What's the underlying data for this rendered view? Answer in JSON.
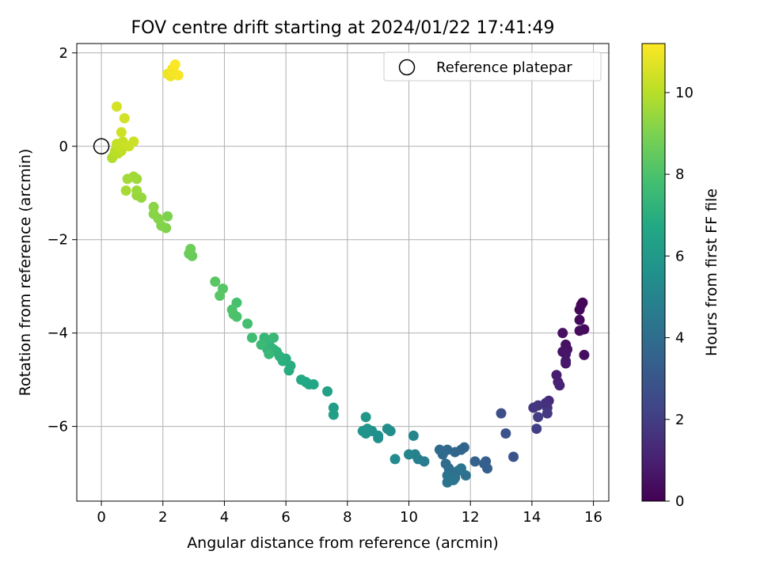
{
  "chart_data": {
    "type": "scatter",
    "title": "FOV centre drift starting at 2024/01/22 17:41:49",
    "xlabel": "Angular distance from reference (arcmin)",
    "ylabel": "Rotation from reference (arcmin)",
    "xlim": [
      -0.8,
      16.5
    ],
    "ylim": [
      -7.6,
      2.2
    ],
    "xticks": [
      0,
      2,
      4,
      6,
      8,
      10,
      12,
      14,
      16
    ],
    "yticks": [
      -6,
      -4,
      -2,
      0,
      2
    ],
    "grid": true,
    "legend": {
      "placement": "top-right",
      "entries": [
        "Reference platepar"
      ]
    },
    "reference_point": {
      "x": 0,
      "y": 0
    },
    "colorbar": {
      "label": "Hours from first FF file",
      "min": 0,
      "max": 11.2,
      "ticks": [
        0,
        2,
        4,
        6,
        8,
        10
      ],
      "colormap": "viridis"
    },
    "points": [
      {
        "x": 15.65,
        "y": -3.35,
        "c": 0.1
      },
      {
        "x": 15.6,
        "y": -3.4,
        "c": 0.15
      },
      {
        "x": 15.55,
        "y": -3.5,
        "c": 0.2
      },
      {
        "x": 15.55,
        "y": -3.72,
        "c": 0.25
      },
      {
        "x": 15.7,
        "y": -3.92,
        "c": 0.3
      },
      {
        "x": 15.55,
        "y": -3.95,
        "c": 0.35
      },
      {
        "x": 15.7,
        "y": -4.47,
        "c": 0.4
      },
      {
        "x": 15.0,
        "y": -4.0,
        "c": 0.45
      },
      {
        "x": 15.1,
        "y": -4.25,
        "c": 0.5
      },
      {
        "x": 15.15,
        "y": -4.35,
        "c": 0.55
      },
      {
        "x": 15.0,
        "y": -4.4,
        "c": 0.6
      },
      {
        "x": 15.1,
        "y": -4.45,
        "c": 0.65
      },
      {
        "x": 15.1,
        "y": -4.6,
        "c": 0.7
      },
      {
        "x": 15.1,
        "y": -4.65,
        "c": 0.75
      },
      {
        "x": 14.8,
        "y": -4.9,
        "c": 0.9
      },
      {
        "x": 14.85,
        "y": -5.05,
        "c": 1.0
      },
      {
        "x": 14.9,
        "y": -5.12,
        "c": 1.1
      },
      {
        "x": 14.55,
        "y": -5.45,
        "c": 1.4
      },
      {
        "x": 14.45,
        "y": -5.5,
        "c": 1.5
      },
      {
        "x": 14.5,
        "y": -5.6,
        "c": 1.6
      },
      {
        "x": 14.2,
        "y": -5.55,
        "c": 1.7
      },
      {
        "x": 14.05,
        "y": -5.6,
        "c": 1.8
      },
      {
        "x": 14.5,
        "y": -5.72,
        "c": 1.9
      },
      {
        "x": 14.2,
        "y": -5.8,
        "c": 2.0
      },
      {
        "x": 14.15,
        "y": -6.05,
        "c": 2.1
      },
      {
        "x": 13.0,
        "y": -5.72,
        "c": 2.7
      },
      {
        "x": 13.15,
        "y": -6.15,
        "c": 2.8
      },
      {
        "x": 13.4,
        "y": -6.65,
        "c": 2.9
      },
      {
        "x": 12.5,
        "y": -6.75,
        "c": 3.3
      },
      {
        "x": 12.55,
        "y": -6.9,
        "c": 3.35
      },
      {
        "x": 12.45,
        "y": -6.8,
        "c": 3.4
      },
      {
        "x": 12.15,
        "y": -6.75,
        "c": 3.5
      },
      {
        "x": 11.8,
        "y": -6.45,
        "c": 3.6
      },
      {
        "x": 11.7,
        "y": -6.5,
        "c": 3.65
      },
      {
        "x": 11.5,
        "y": -6.55,
        "c": 3.7
      },
      {
        "x": 11.25,
        "y": -6.5,
        "c": 3.8
      },
      {
        "x": 11.1,
        "y": -6.6,
        "c": 3.85
      },
      {
        "x": 11.0,
        "y": -6.5,
        "c": 3.9
      },
      {
        "x": 11.2,
        "y": -6.8,
        "c": 3.95
      },
      {
        "x": 11.3,
        "y": -6.9,
        "c": 4.0
      },
      {
        "x": 11.4,
        "y": -7.0,
        "c": 4.05
      },
      {
        "x": 11.6,
        "y": -6.95,
        "c": 4.1
      },
      {
        "x": 11.85,
        "y": -7.05,
        "c": 4.15
      },
      {
        "x": 11.5,
        "y": -7.1,
        "c": 4.2
      },
      {
        "x": 11.25,
        "y": -7.05,
        "c": 4.25
      },
      {
        "x": 11.25,
        "y": -7.2,
        "c": 4.3
      },
      {
        "x": 11.45,
        "y": -7.15,
        "c": 4.35
      },
      {
        "x": 11.7,
        "y": -6.9,
        "c": 4.4
      },
      {
        "x": 10.5,
        "y": -6.75,
        "c": 4.7
      },
      {
        "x": 10.3,
        "y": -6.7,
        "c": 4.8
      },
      {
        "x": 10.2,
        "y": -6.6,
        "c": 4.9
      },
      {
        "x": 10.0,
        "y": -6.6,
        "c": 5.0
      },
      {
        "x": 10.15,
        "y": -6.2,
        "c": 5.1
      },
      {
        "x": 9.55,
        "y": -6.7,
        "c": 5.3
      },
      {
        "x": 9.4,
        "y": -6.1,
        "c": 5.4
      },
      {
        "x": 9.3,
        "y": -6.05,
        "c": 5.45
      },
      {
        "x": 9.0,
        "y": -6.25,
        "c": 5.5
      },
      {
        "x": 9.0,
        "y": -6.2,
        "c": 5.55
      },
      {
        "x": 8.8,
        "y": -6.1,
        "c": 5.6
      },
      {
        "x": 8.6,
        "y": -6.15,
        "c": 5.7
      },
      {
        "x": 8.65,
        "y": -6.05,
        "c": 5.75
      },
      {
        "x": 8.5,
        "y": -6.1,
        "c": 5.8
      },
      {
        "x": 8.6,
        "y": -5.8,
        "c": 5.9
      },
      {
        "x": 7.55,
        "y": -5.6,
        "c": 6.2
      },
      {
        "x": 7.55,
        "y": -5.75,
        "c": 6.3
      },
      {
        "x": 7.35,
        "y": -5.25,
        "c": 6.4
      },
      {
        "x": 6.9,
        "y": -5.1,
        "c": 6.6
      },
      {
        "x": 6.75,
        "y": -5.1,
        "c": 6.65
      },
      {
        "x": 6.65,
        "y": -5.05,
        "c": 6.7
      },
      {
        "x": 6.5,
        "y": -5.0,
        "c": 6.75
      },
      {
        "x": 6.1,
        "y": -4.8,
        "c": 6.9
      },
      {
        "x": 6.15,
        "y": -4.7,
        "c": 6.95
      },
      {
        "x": 6.0,
        "y": -4.55,
        "c": 7.0
      },
      {
        "x": 5.9,
        "y": -4.6,
        "c": 7.05
      },
      {
        "x": 5.8,
        "y": -4.5,
        "c": 7.1
      },
      {
        "x": 5.7,
        "y": -4.4,
        "c": 7.15
      },
      {
        "x": 5.6,
        "y": -4.35,
        "c": 7.2
      },
      {
        "x": 5.5,
        "y": -4.3,
        "c": 7.25
      },
      {
        "x": 5.4,
        "y": -4.35,
        "c": 7.3
      },
      {
        "x": 5.35,
        "y": -4.2,
        "c": 7.35
      },
      {
        "x": 5.3,
        "y": -4.1,
        "c": 7.4
      },
      {
        "x": 5.6,
        "y": -4.1,
        "c": 7.45
      },
      {
        "x": 5.45,
        "y": -4.45,
        "c": 7.5
      },
      {
        "x": 5.2,
        "y": -4.25,
        "c": 7.55
      },
      {
        "x": 4.9,
        "y": -4.1,
        "c": 7.7
      },
      {
        "x": 4.75,
        "y": -3.8,
        "c": 7.8
      },
      {
        "x": 4.4,
        "y": -3.35,
        "c": 7.9
      },
      {
        "x": 4.4,
        "y": -3.65,
        "c": 7.95
      },
      {
        "x": 4.3,
        "y": -3.6,
        "c": 8.0
      },
      {
        "x": 4.25,
        "y": -3.5,
        "c": 8.05
      },
      {
        "x": 3.95,
        "y": -3.05,
        "c": 8.2
      },
      {
        "x": 3.85,
        "y": -3.2,
        "c": 8.25
      },
      {
        "x": 3.7,
        "y": -2.9,
        "c": 8.3
      },
      {
        "x": 2.95,
        "y": -2.35,
        "c": 8.6
      },
      {
        "x": 2.85,
        "y": -2.3,
        "c": 8.65
      },
      {
        "x": 2.9,
        "y": -2.2,
        "c": 8.7
      },
      {
        "x": 2.15,
        "y": -1.5,
        "c": 9.0
      },
      {
        "x": 2.1,
        "y": -1.75,
        "c": 9.05
      },
      {
        "x": 1.95,
        "y": -1.7,
        "c": 9.1
      },
      {
        "x": 1.85,
        "y": -1.55,
        "c": 9.15
      },
      {
        "x": 1.7,
        "y": -1.45,
        "c": 9.2
      },
      {
        "x": 1.7,
        "y": -1.3,
        "c": 9.25
      },
      {
        "x": 1.3,
        "y": -1.1,
        "c": 9.4
      },
      {
        "x": 1.15,
        "y": -1.05,
        "c": 9.45
      },
      {
        "x": 1.15,
        "y": -0.95,
        "c": 9.5
      },
      {
        "x": 1.15,
        "y": -0.7,
        "c": 9.55
      },
      {
        "x": 1.05,
        "y": -0.65,
        "c": 9.6
      },
      {
        "x": 0.85,
        "y": -0.7,
        "c": 9.65
      },
      {
        "x": 0.8,
        "y": -0.95,
        "c": 9.7
      },
      {
        "x": 0.35,
        "y": -0.25,
        "c": 9.9
      },
      {
        "x": 0.4,
        "y": -0.2,
        "c": 9.95
      },
      {
        "x": 0.45,
        "y": -0.1,
        "c": 10.0
      },
      {
        "x": 0.55,
        "y": -0.15,
        "c": 10.05
      },
      {
        "x": 0.65,
        "y": -0.1,
        "c": 10.1
      },
      {
        "x": 0.5,
        "y": 0.05,
        "c": 10.15
      },
      {
        "x": 0.6,
        "y": 0.0,
        "c": 10.2
      },
      {
        "x": 0.7,
        "y": 0.1,
        "c": 10.25
      },
      {
        "x": 0.9,
        "y": 0.0,
        "c": 10.3
      },
      {
        "x": 1.05,
        "y": 0.1,
        "c": 10.35
      },
      {
        "x": 0.65,
        "y": 0.3,
        "c": 10.4
      },
      {
        "x": 0.75,
        "y": 0.6,
        "c": 10.45
      },
      {
        "x": 0.5,
        "y": 0.85,
        "c": 10.5
      },
      {
        "x": 2.15,
        "y": 1.55,
        "c": 10.9
      },
      {
        "x": 2.25,
        "y": 1.5,
        "c": 10.95
      },
      {
        "x": 2.35,
        "y": 1.6,
        "c": 11.0
      },
      {
        "x": 2.3,
        "y": 1.65,
        "c": 11.05
      },
      {
        "x": 2.5,
        "y": 1.52,
        "c": 11.1
      },
      {
        "x": 2.4,
        "y": 1.75,
        "c": 11.15
      }
    ]
  }
}
